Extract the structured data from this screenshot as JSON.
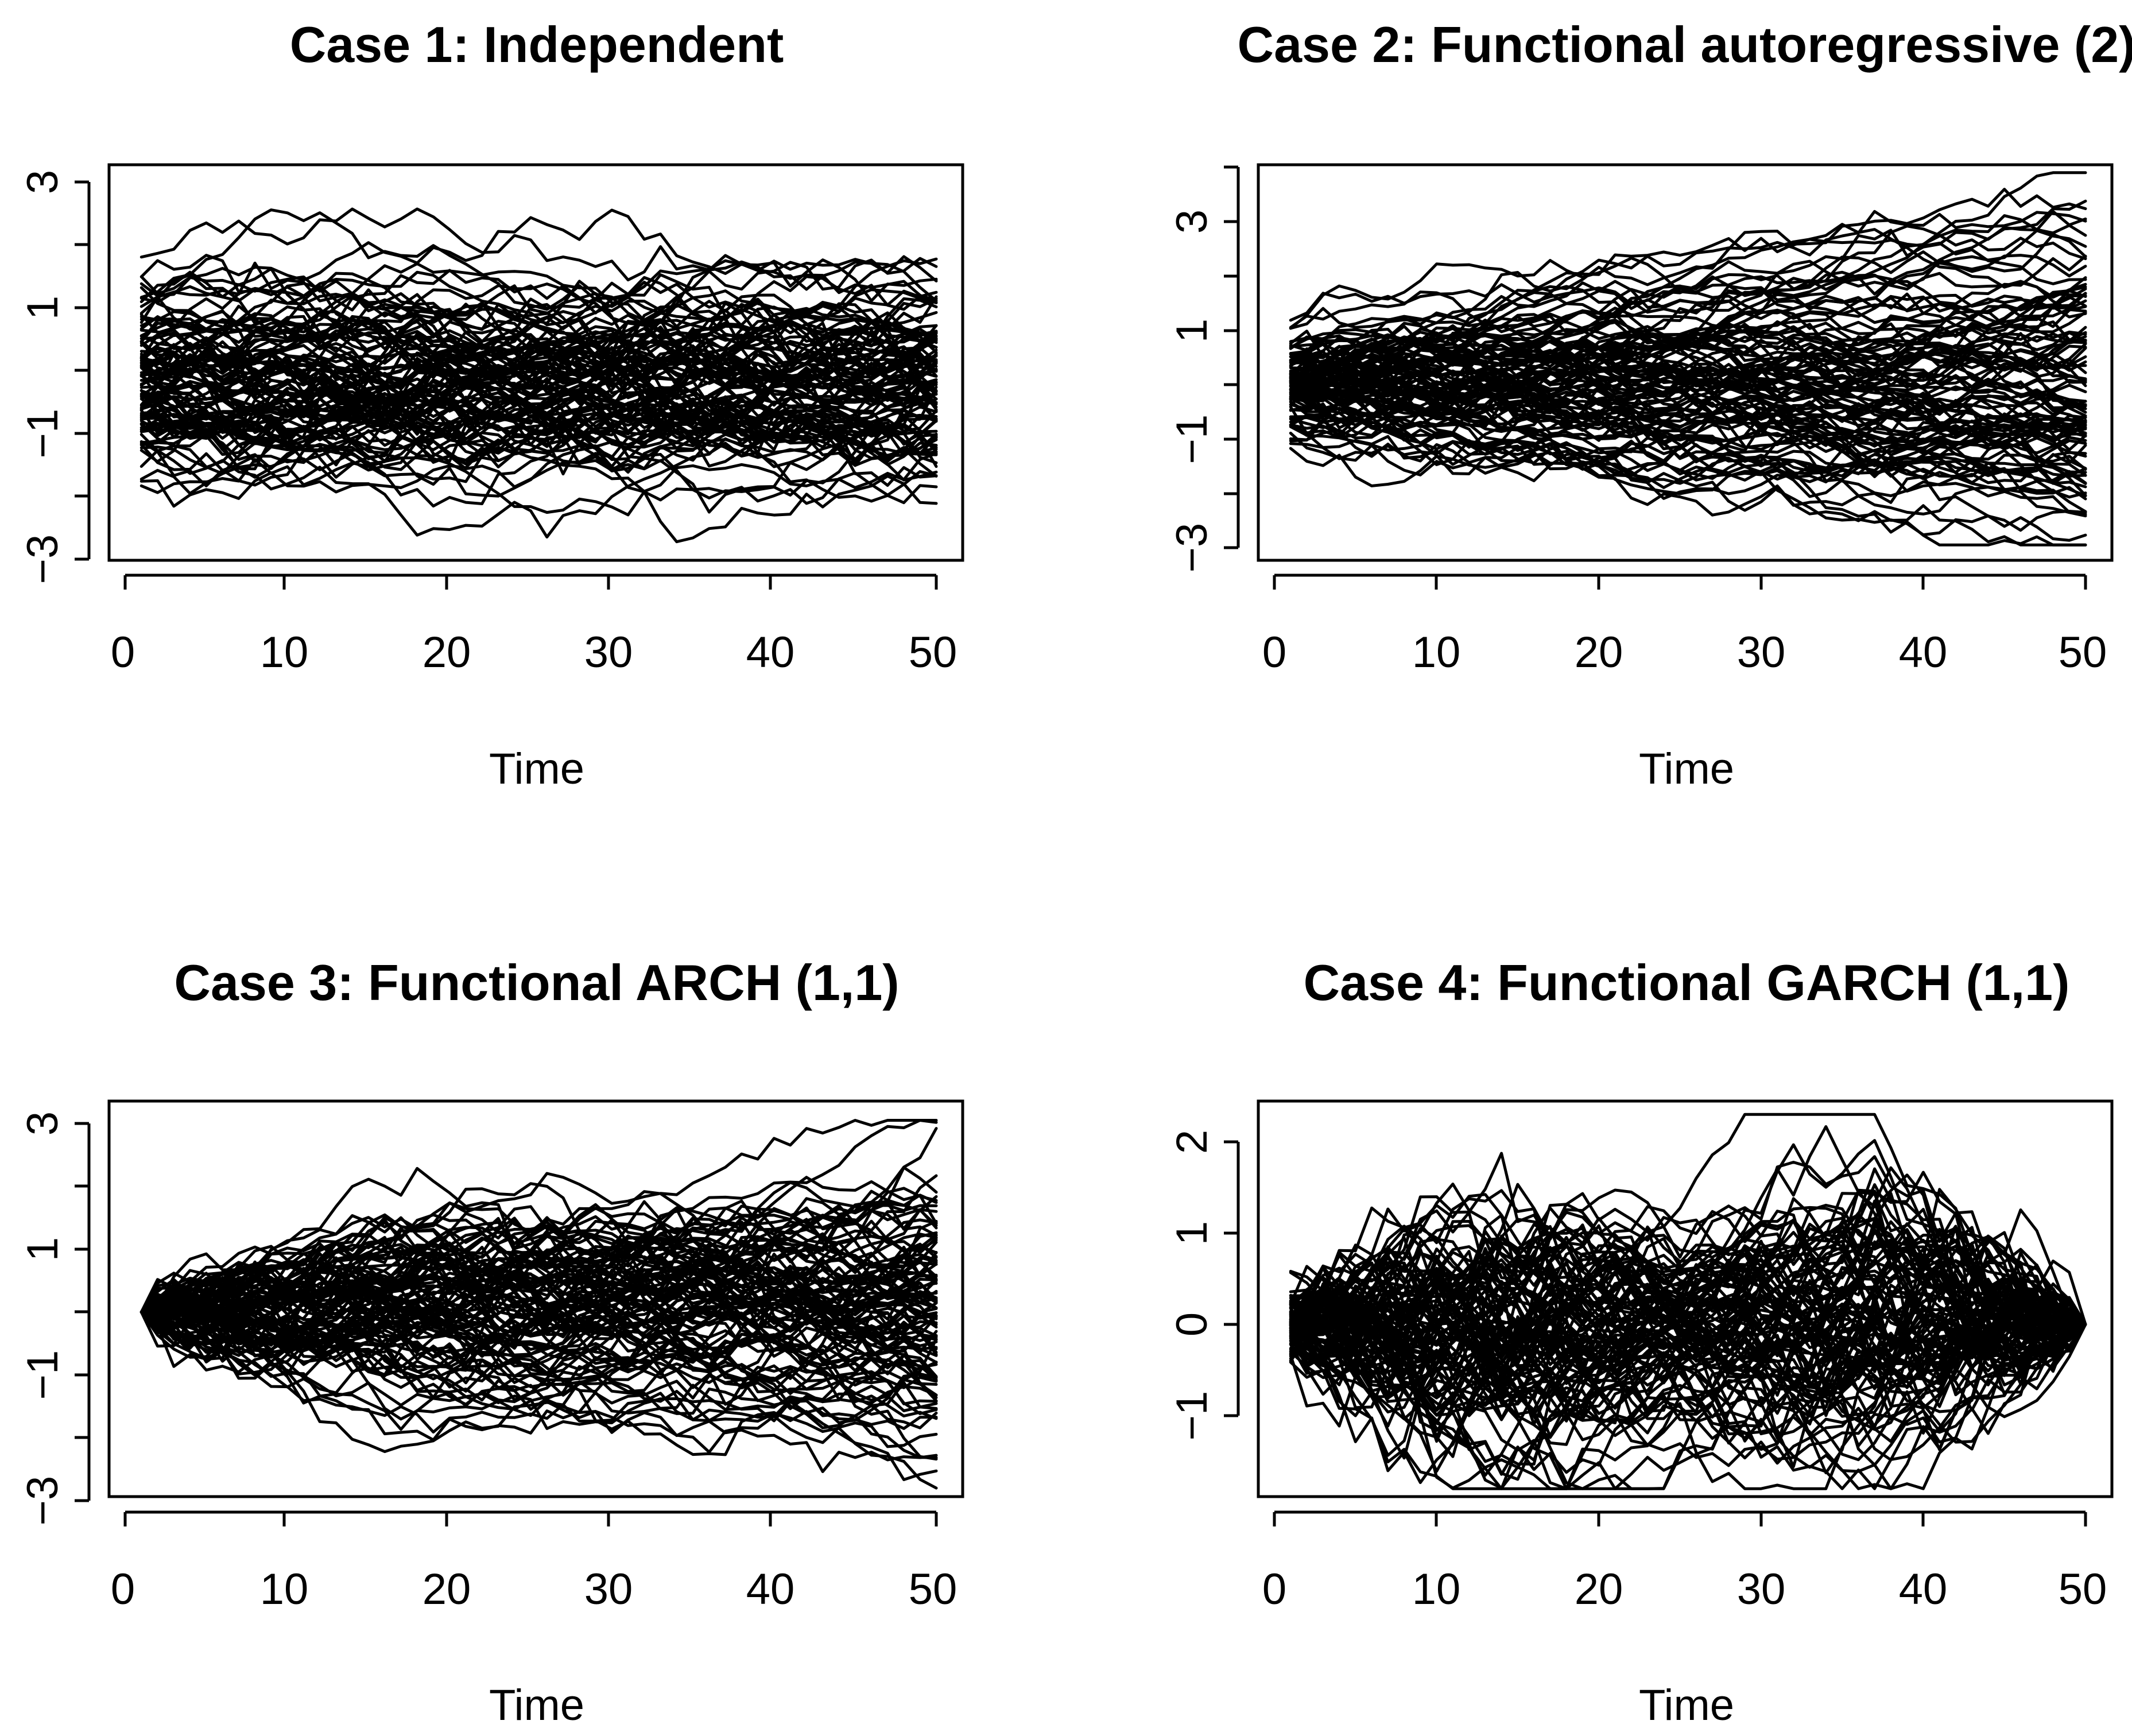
{
  "chart_data": [
    {
      "type": "line",
      "title": "Case 1: Independent",
      "xlabel": "Time",
      "ylabel": "",
      "xlim": [
        0,
        50
      ],
      "ylim": [
        -3,
        3
      ],
      "x_ticks": [
        "0",
        "10",
        "20",
        "30",
        "40",
        "50"
      ],
      "y_ticks": [
        "3",
        "1",
        "−1",
        "−3"
      ],
      "n_curves": 100,
      "x": [
        1,
        50
      ],
      "process": "independent Brownian-like curves, spread roughly constant over time, range about -2.8 to 3"
    },
    {
      "type": "line",
      "title": "Case 2: Functional autoregressive (2)",
      "xlabel": "Time",
      "ylabel": "",
      "xlim": [
        0,
        50
      ],
      "ylim": [
        -3,
        4
      ],
      "x_ticks": [
        "0",
        "10",
        "20",
        "30",
        "40",
        "50"
      ],
      "y_ticks": [
        "3",
        "1",
        "−1",
        "−3"
      ],
      "n_curves": 100,
      "x": [
        1,
        50
      ],
      "process": "curves start near 0 (about -1 to 1.5) and fan out, range about -3 to 4 at t=50"
    },
    {
      "type": "line",
      "title": "Case 3: Functional  ARCH (1,1)",
      "xlabel": "Time",
      "ylabel": "",
      "xlim": [
        0,
        50
      ],
      "ylim": [
        -3,
        3
      ],
      "x_ticks": [
        "0",
        "10",
        "20",
        "30",
        "40",
        "50"
      ],
      "y_ticks": [
        "3",
        "1",
        "−1",
        "−3"
      ],
      "n_curves": 100,
      "x": [
        1,
        50
      ],
      "process": "all curves start at 0 and diffuse, range about -2.8 to 3 at t=50"
    },
    {
      "type": "line",
      "title": "Case 4: Functional  GARCH (1,1)",
      "xlabel": "Time",
      "ylabel": "",
      "xlim": [
        0,
        50
      ],
      "ylim": [
        -1.9,
        2.4
      ],
      "x_ticks": [
        "0",
        "10",
        "20",
        "30",
        "40",
        "50"
      ],
      "y_ticks": [
        "2",
        "1",
        "0",
        "−1"
      ],
      "n_curves": 100,
      "x": [
        1,
        50
      ],
      "process": "two lobes with all curves pinched to 0 at t=50, range about -1.8 to 2.3"
    }
  ]
}
